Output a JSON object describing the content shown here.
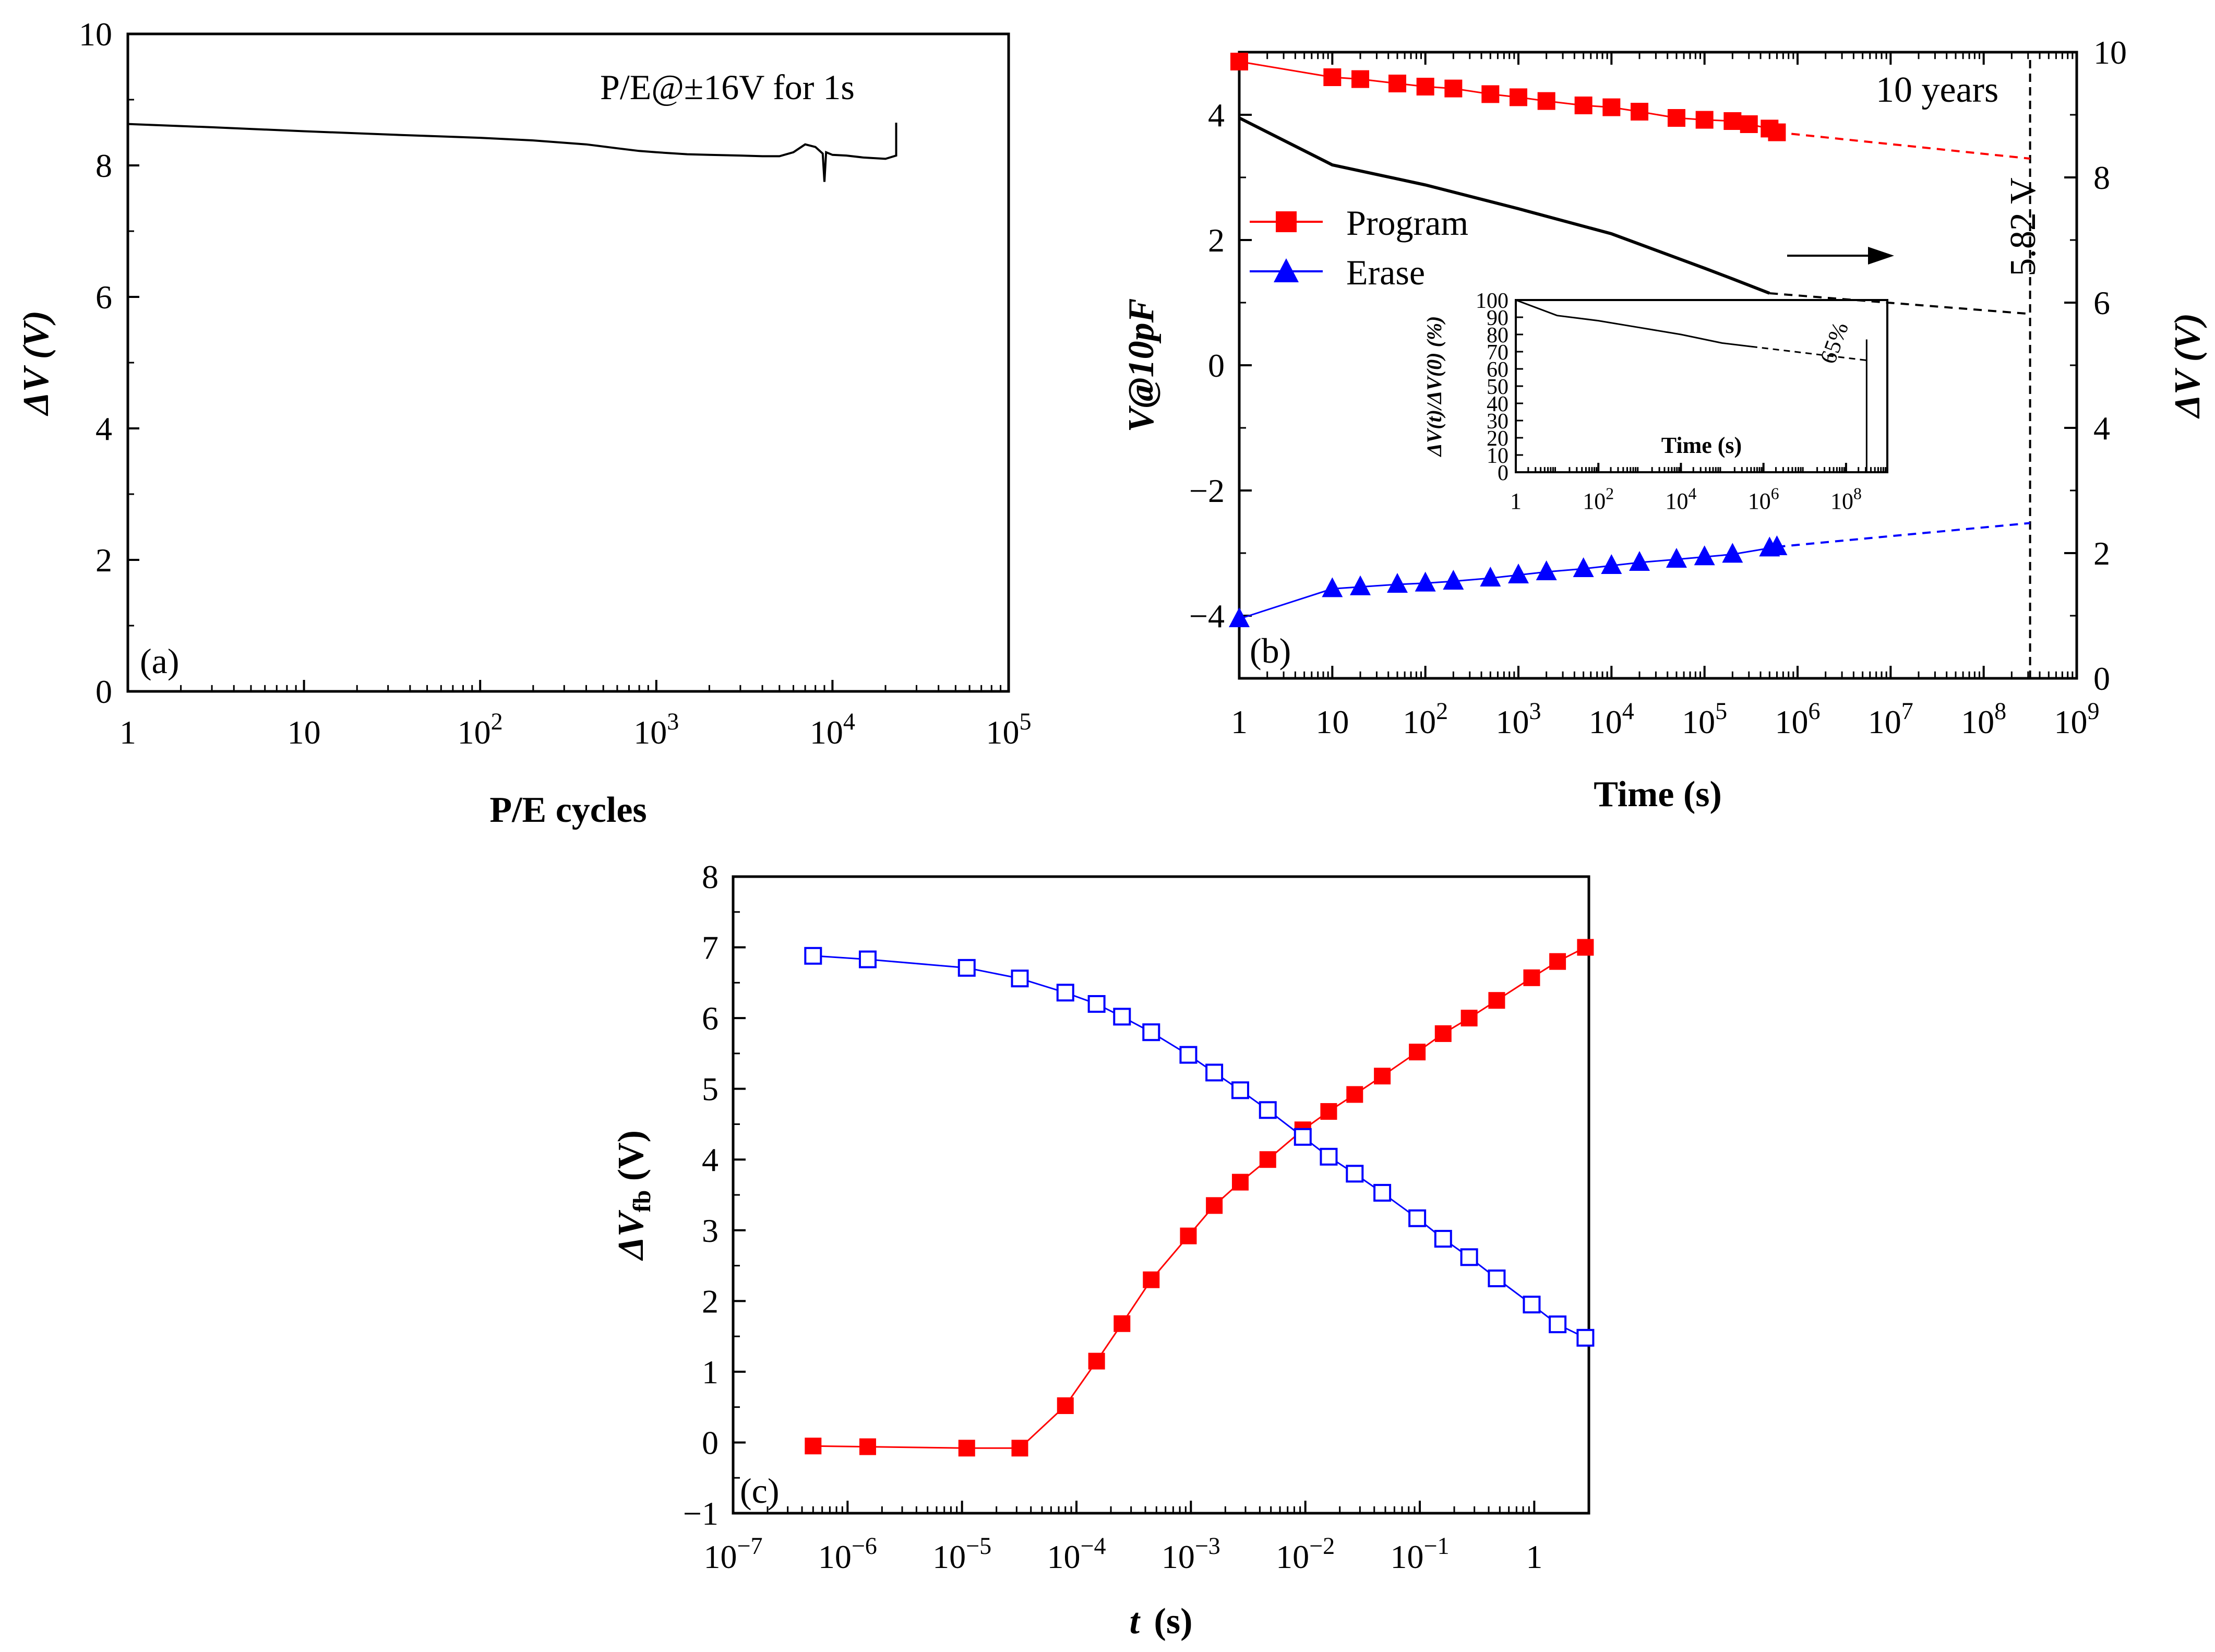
{
  "chart_data": [
    {
      "id": "a",
      "type": "line",
      "panel_label": "(a)",
      "annotation": "P/E@±16V for 1s",
      "xlabel": "P/E cycles",
      "ylabel": "ΔV (V)",
      "xscale": "log",
      "xlim": [
        1,
        100000
      ],
      "ylim": [
        0,
        10
      ],
      "yticks": [
        0,
        2,
        4,
        6,
        8,
        10
      ],
      "xticks": [
        {
          "value": 1,
          "label": "1"
        },
        {
          "value": 10,
          "label": "10"
        },
        {
          "value": 100,
          "label": "10",
          "sup": "2"
        },
        {
          "value": 1000,
          "label": "10",
          "sup": "3"
        },
        {
          "value": 10000,
          "label": "10",
          "sup": "4"
        },
        {
          "value": 100000,
          "label": "10",
          "sup": "5"
        }
      ],
      "series": [
        {
          "name": "ΔV",
          "color": "#000000",
          "x": [
            1,
            3,
            10,
            30,
            100,
            200,
            400,
            600,
            800,
            1000,
            1500,
            2000,
            3000,
            4000,
            5000,
            6000,
            7000,
            8000,
            8800,
            9000,
            9200,
            10000,
            12000,
            15000,
            20000,
            23000,
            23000
          ],
          "y": [
            8.63,
            8.58,
            8.52,
            8.47,
            8.42,
            8.38,
            8.32,
            8.26,
            8.22,
            8.2,
            8.17,
            8.16,
            8.15,
            8.14,
            8.14,
            8.2,
            8.32,
            8.28,
            8.18,
            7.75,
            8.2,
            8.16,
            8.15,
            8.12,
            8.1,
            8.15,
            8.65
          ]
        }
      ]
    },
    {
      "id": "b",
      "type": "scatter",
      "panel_label": "(b)",
      "xlabel": "Time (s)",
      "ylabel": "V@10pF",
      "y2label": "ΔV (V)",
      "xscale": "log",
      "xlim": [
        1,
        1000000000
      ],
      "ylim": [
        -5,
        5
      ],
      "y2lim": [
        0,
        10
      ],
      "yticks": [
        {
          "value": -4,
          "label": "−4"
        },
        {
          "value": -2,
          "label": "−2"
        },
        {
          "value": 0,
          "label": "0"
        },
        {
          "value": 2,
          "label": "2"
        },
        {
          "value": 4,
          "label": "4"
        }
      ],
      "y2ticks": [
        0,
        2,
        4,
        6,
        8,
        10
      ],
      "xticks": [
        {
          "value": 1,
          "label": "1"
        },
        {
          "value": 10,
          "label": "10"
        },
        {
          "value": 100,
          "label": "10",
          "sup": "2"
        },
        {
          "value": 1000,
          "label": "10",
          "sup": "3"
        },
        {
          "value": 10000,
          "label": "10",
          "sup": "4"
        },
        {
          "value": 100000,
          "label": "10",
          "sup": "5"
        },
        {
          "value": 1000000,
          "label": "10",
          "sup": "6"
        },
        {
          "value": 10000000,
          "label": "10",
          "sup": "7"
        },
        {
          "value": 100000000,
          "label": "10",
          "sup": "8"
        },
        {
          "value": 1000000000,
          "label": "10",
          "sup": "9"
        }
      ],
      "legend": {
        "position": "left",
        "entries": [
          "Program",
          "Erase"
        ]
      },
      "annotations": {
        "ten_years": "10 years",
        "ten_years_x": 315360000,
        "window_value": "5.82 V"
      },
      "series": [
        {
          "name": "Program",
          "color": "#ff0000",
          "marker": "square",
          "x": [
            1,
            10,
            20,
            50,
            100,
            200,
            500,
            1000,
            2000,
            5000,
            10000,
            20000,
            50000,
            100000,
            200000,
            300000,
            500000,
            600000
          ],
          "y": [
            4.85,
            4.6,
            4.57,
            4.5,
            4.45,
            4.42,
            4.33,
            4.28,
            4.22,
            4.15,
            4.12,
            4.05,
            3.95,
            3.92,
            3.9,
            3.85,
            3.78,
            3.72
          ],
          "extrapolation": {
            "x": [
              600000,
              315360000
            ],
            "y": [
              3.72,
              3.3
            ]
          }
        },
        {
          "name": "Erase",
          "color": "#0000ff",
          "marker": "triangle",
          "x": [
            1,
            10,
            20,
            50,
            100,
            200,
            500,
            1000,
            2000,
            5000,
            10000,
            20000,
            50000,
            100000,
            200000,
            500000,
            600000
          ],
          "y": [
            -4.05,
            -3.57,
            -3.54,
            -3.5,
            -3.48,
            -3.45,
            -3.4,
            -3.35,
            -3.3,
            -3.25,
            -3.2,
            -3.15,
            -3.1,
            -3.06,
            -3.02,
            -2.92,
            -2.9
          ],
          "extrapolation": {
            "x": [
              600000,
              315360000
            ],
            "y": [
              -2.9,
              -2.52
            ]
          }
        },
        {
          "name": "ΔV",
          "axis": "right",
          "color": "#000000",
          "marker": "none",
          "x": [
            1,
            10,
            100,
            1000,
            10000,
            100000,
            200000,
            500000
          ],
          "y": [
            8.95,
            8.2,
            7.88,
            7.5,
            7.1,
            6.55,
            6.38,
            6.15
          ],
          "extrapolation": {
            "x": [
              500000,
              315360000
            ],
            "y": [
              6.15,
              5.82
            ]
          }
        }
      ],
      "inset": {
        "xlabel": "Time (s)",
        "ylabel": "ΔV(t)/ΔV(0) (%)",
        "annotation": "65%",
        "xscale": "log",
        "xlim": [
          1,
          1000000000
        ],
        "ylim": [
          0,
          100
        ],
        "yticks": [
          0,
          10,
          20,
          30,
          40,
          50,
          60,
          70,
          80,
          90,
          100
        ],
        "xticks": [
          {
            "value": 1,
            "label": "1"
          },
          {
            "value": 100,
            "label": "10",
            "sup": "2"
          },
          {
            "value": 10000,
            "label": "10",
            "sup": "4"
          },
          {
            "value": 1000000,
            "label": "10",
            "sup": "6"
          },
          {
            "value": 100000000,
            "label": "10",
            "sup": "8"
          }
        ],
        "x": [
          1,
          10,
          100,
          1000,
          10000,
          100000,
          500000
        ],
        "y": [
          100,
          91,
          88,
          84,
          80,
          75,
          73
        ],
        "extrapolation": {
          "x": [
            500000,
            315360000
          ],
          "y": [
            73,
            65
          ]
        }
      }
    },
    {
      "id": "c",
      "type": "line",
      "panel_label": "(c)",
      "xlabel": "t (s)",
      "ylabel": "ΔVfb (V)",
      "xscale": "log",
      "xlim": [
        1e-07,
        3
      ],
      "ylim": [
        -1,
        8
      ],
      "yticks": [
        {
          "value": -1,
          "label": "−1"
        },
        {
          "value": 0,
          "label": "0"
        },
        {
          "value": 1,
          "label": "1"
        },
        {
          "value": 2,
          "label": "2"
        },
        {
          "value": 3,
          "label": "3"
        },
        {
          "value": 4,
          "label": "4"
        },
        {
          "value": 5,
          "label": "5"
        },
        {
          "value": 6,
          "label": "6"
        },
        {
          "value": 7,
          "label": "7"
        },
        {
          "value": 8,
          "label": "8"
        }
      ],
      "xticks": [
        {
          "value": 1e-07,
          "label": "10",
          "sup": "−7"
        },
        {
          "value": 1e-06,
          "label": "10",
          "sup": "−6"
        },
        {
          "value": 1e-05,
          "label": "10",
          "sup": "−5"
        },
        {
          "value": 0.0001,
          "label": "10",
          "sup": "−4"
        },
        {
          "value": 0.001,
          "label": "10",
          "sup": "−3"
        },
        {
          "value": 0.01,
          "label": "10",
          "sup": "−2"
        },
        {
          "value": 0.1,
          "label": "10",
          "sup": "−1"
        },
        {
          "value": 1,
          "label": "1"
        }
      ],
      "series": [
        {
          "name": "Program",
          "color": "#ff0000",
          "marker": "filled-square",
          "x": [
            5e-07,
            1.5e-06,
            1.1e-05,
            3.2e-05,
            8e-05,
            0.00015,
            0.00025,
            0.00045,
            0.00095,
            0.0016,
            0.0027,
            0.0047,
            0.0095,
            0.016,
            0.027,
            0.047,
            0.095,
            0.16,
            0.27,
            0.47,
            0.95,
            1.6,
            2.8
          ],
          "y": [
            -0.05,
            -0.06,
            -0.08,
            -0.08,
            0.52,
            1.15,
            1.68,
            2.3,
            2.92,
            3.35,
            3.68,
            4.0,
            4.42,
            4.68,
            4.92,
            5.18,
            5.52,
            5.78,
            6.0,
            6.25,
            6.57,
            6.8,
            7.0
          ]
        },
        {
          "name": "Erase",
          "color": "#0000ff",
          "marker": "open-square",
          "x": [
            5e-07,
            1.5e-06,
            1.1e-05,
            3.2e-05,
            8e-05,
            0.00015,
            0.00025,
            0.00045,
            0.00095,
            0.0016,
            0.0027,
            0.0047,
            0.0095,
            0.016,
            0.027,
            0.047,
            0.095,
            0.16,
            0.27,
            0.47,
            0.95,
            1.6,
            2.8
          ],
          "y": [
            6.88,
            6.83,
            6.71,
            6.56,
            6.36,
            6.2,
            6.02,
            5.8,
            5.48,
            5.23,
            4.98,
            4.7,
            4.32,
            4.04,
            3.8,
            3.53,
            3.17,
            2.88,
            2.62,
            2.32,
            1.95,
            1.67,
            1.48
          ]
        }
      ]
    }
  ]
}
